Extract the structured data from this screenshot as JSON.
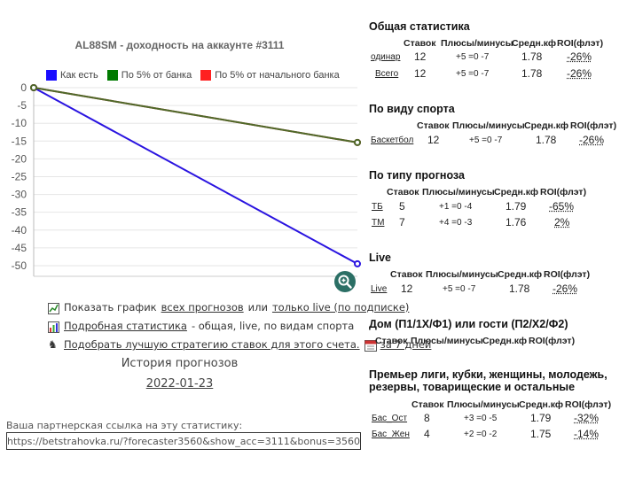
{
  "chart": {
    "title": "AL88SM - доходность на аккаунте #3111",
    "legend": [
      {
        "label": "Как есть",
        "color": "#1a0dff"
      },
      {
        "label": "По 5% от банка",
        "color": "#007a00"
      },
      {
        "label": "По 5% от начального банка",
        "color": "#ff2020"
      }
    ]
  },
  "chart_data": {
    "type": "line",
    "x": [
      0,
      1
    ],
    "ylim": [
      -53,
      0
    ],
    "yticks": [
      "0",
      "-5",
      "-10",
      "-15",
      "-20",
      "-25",
      "-30",
      "-35",
      "-40",
      "-45",
      "-50"
    ],
    "ytick_values": [
      0,
      -5,
      -10,
      -15,
      -20,
      -25,
      -30,
      -35,
      -40,
      -45,
      -50
    ],
    "grid": true,
    "series": [
      {
        "name": "Как есть",
        "color": "#2a14e0",
        "values": [
          0,
          -49.5
        ]
      },
      {
        "name": "По 5% от начального банка",
        "color": "#c02020",
        "values": [
          0,
          -15.4
        ]
      },
      {
        "name": "По 5% от банка",
        "color": "#4e6a2a",
        "values": [
          0,
          -15.4
        ]
      }
    ]
  },
  "links": {
    "row1_pre": "Показать график",
    "row1_link1": "всех прогнозов",
    "row1_mid": "или",
    "row1_link2": "только live (по подписке)",
    "row2_link": "Подробная статистика",
    "row2_post": "- общая, live, по видам спорта",
    "row3_link": "Подобрать лучшую стратегию ставок для этого счета.",
    "row3_link2": "за 7 дней"
  },
  "history": {
    "title": "История прогнозов",
    "date": "2022-01-23"
  },
  "partner": {
    "label": "Ваша партнерская ссылка на эту статистику:",
    "url": "https://betstrahovka.ru/?forecaster3560&show_acc=3111&bonus=3560"
  },
  "stats": {
    "headers": {
      "bets": "Ставок",
      "pm": "Плюсы/минусы",
      "coef": "Средн.кф",
      "roi": "ROI(флэт)"
    },
    "general": {
      "title": "Общая статистика",
      "rows": [
        {
          "label": "одинар",
          "bets": "12",
          "pm": "+5 =0 -7",
          "coef": "1.78",
          "roi": "-26%"
        },
        {
          "label": "Всего",
          "bets": "12",
          "pm": "+5 =0 -7",
          "coef": "1.78",
          "roi": "-26%"
        }
      ]
    },
    "sport": {
      "title": "По виду спорта",
      "rows": [
        {
          "label": "Баскетбол",
          "bets": "12",
          "pm": "+5 =0 -7",
          "coef": "1.78",
          "roi": "-26%"
        }
      ]
    },
    "forecast_type": {
      "title": "По типу прогноза",
      "rows": [
        {
          "label": "ТБ",
          "bets": "5",
          "pm": "+1 =0 -4",
          "coef": "1.79",
          "roi": "-65%"
        },
        {
          "label": "ТМ",
          "bets": "7",
          "pm": "+4 =0 -3",
          "coef": "1.76",
          "roi": "2%"
        }
      ]
    },
    "live": {
      "title": "Live",
      "rows": [
        {
          "label": "Live",
          "bets": "12",
          "pm": "+5 =0 -7",
          "coef": "1.78",
          "roi": "-26%"
        }
      ]
    },
    "home_away": {
      "title": "Дом (П1/1Х/Ф1) или гости (П2/Х2/Ф2)"
    },
    "league": {
      "title_line1": "Премьер лиги, кубки, женщины, молодежь,",
      "title_line2": "резервы, товарищеские и остальные",
      "rows": [
        {
          "label": "Бас_Ост",
          "bets": "8",
          "pm": "+3 =0 -5",
          "coef": "1.79",
          "roi": "-32%"
        },
        {
          "label": "Бас_Жен",
          "bets": "4",
          "pm": "+2 =0 -2",
          "coef": "1.75",
          "roi": "-14%"
        }
      ]
    }
  }
}
